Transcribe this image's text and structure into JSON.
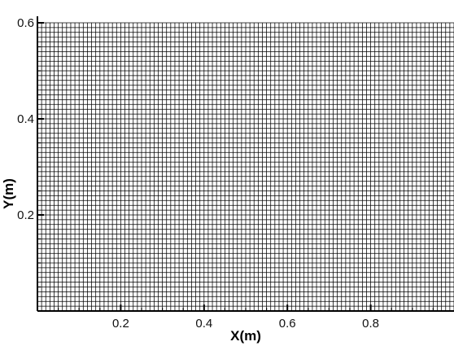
{
  "chart_data": {
    "type": "mesh",
    "title": "",
    "xlabel": "X(m)",
    "ylabel": "Y(m)",
    "xlim": [
      0,
      1
    ],
    "ylim": [
      0,
      0.6
    ],
    "x_ticks": [
      {
        "value": 0.2,
        "label": "0.2"
      },
      {
        "value": 0.4,
        "label": "0.4"
      },
      {
        "value": 0.6,
        "label": "0.6"
      },
      {
        "value": 0.8,
        "label": "0.8"
      }
    ],
    "y_ticks": [
      {
        "value": 0.2,
        "label": "0.2"
      },
      {
        "value": 0.4,
        "label": "0.4"
      },
      {
        "value": 0.6,
        "label": "0.6"
      }
    ],
    "mesh": {
      "x_cells": 100,
      "y_cells": 60,
      "cell_size_x": 0.01,
      "cell_size_y": 0.01
    },
    "line_color": "#000000",
    "background_color": "#ffffff"
  }
}
